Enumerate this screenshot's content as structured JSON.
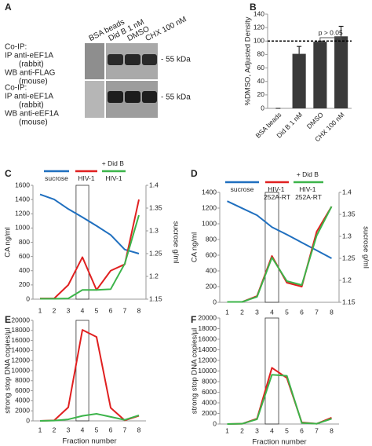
{
  "panel_a": {
    "label": "A",
    "lanes": [
      "BSA beads",
      "Did B 1 nM",
      "DMSO",
      "CHX 100 nM"
    ],
    "blots": [
      {
        "lines": [
          "Co-IP:",
          "IP anti-eEF1A",
          "(rabbit)",
          "WB anti-FLAG",
          "(mouse)"
        ],
        "marker": "- 55 kDa"
      },
      {
        "lines": [
          "Co-IP:",
          "IP  anti-eEF1A",
          "(rabbit)",
          "WB anti-eEF1A",
          "(mouse)"
        ],
        "marker": "- 55 kDa"
      }
    ]
  },
  "chart_data": [
    {
      "panel": "B",
      "type": "bar",
      "ylabel": "%DMSO, Adjusted Density",
      "categories": [
        "BSA beads",
        "Did B 1 nM",
        "DMSO",
        "CHX 100 nM"
      ],
      "values": [
        0,
        81,
        99,
        107
      ],
      "errors": [
        0,
        11,
        1,
        15
      ],
      "color": "#3a3a3a",
      "ylim": [
        0,
        140
      ],
      "yticks": [
        0,
        20,
        40,
        60,
        80,
        100,
        120,
        140
      ],
      "refline": 100,
      "annotation": "p > 0.05"
    },
    {
      "panel": "C",
      "type": "line",
      "ylabel": "CA ng/ml",
      "y2label": "sucrose g/ml",
      "categories": [
        "1",
        "2",
        "3",
        "4",
        "5",
        "6",
        "7",
        "8"
      ],
      "series": [
        {
          "name": "sucrose",
          "color": "#1f6fbf",
          "axis": "y2",
          "values": [
            1.38,
            1.369,
            1.348,
            1.33,
            1.311,
            1.291,
            1.259,
            1.25
          ]
        },
        {
          "name": "HIV-1",
          "color": "#e02020",
          "values": [
            10,
            10,
            200,
            590,
            130,
            400,
            490,
            1400
          ]
        },
        {
          "name": "+ Did B\nHIV-1",
          "color": "#3cb44a",
          "values": [
            5,
            5,
            10,
            130,
            130,
            140,
            500,
            1180
          ]
        }
      ],
      "ylim": [
        0,
        1600
      ],
      "yticks": [
        0,
        200,
        400,
        600,
        800,
        1000,
        1200,
        1400,
        1600
      ],
      "y2lim": [
        1.15,
        1.4
      ],
      "y2ticks": [
        1.15,
        1.2,
        1.25,
        1.3,
        1.35,
        1.4
      ],
      "highlight": "4"
    },
    {
      "panel": "D",
      "type": "line",
      "ylabel": "CA ng/ml",
      "y2label": "sucrose g/ml",
      "categories": [
        "1",
        "2",
        "3",
        "4",
        "5",
        "6",
        "7",
        "8"
      ],
      "series": [
        {
          "name": "sucrose",
          "color": "#1f6fbf",
          "axis": "y2",
          "values": [
            1.38,
            1.364,
            1.348,
            1.321,
            1.304,
            1.286,
            1.268,
            1.25
          ]
        },
        {
          "name": "HIV-1\n252A-RT",
          "color": "#e02020",
          "values": [
            5,
            5,
            80,
            590,
            250,
            200,
            900,
            1220
          ]
        },
        {
          "name": "+ Did B\nHIV-1\n252A-RT",
          "color": "#3cb44a",
          "values": [
            5,
            5,
            70,
            570,
            270,
            220,
            850,
            1220
          ]
        }
      ],
      "ylim": [
        0,
        1400
      ],
      "yticks": [
        0,
        200,
        400,
        600,
        800,
        1000,
        1200,
        1400
      ],
      "y2lim": [
        1.15,
        1.4
      ],
      "y2ticks": [
        1.15,
        1.2,
        1.25,
        1.3,
        1.35,
        1.4
      ],
      "highlight": "4"
    },
    {
      "panel": "E",
      "type": "line",
      "ylabel": "strong stop DNA copies/µl",
      "xlabel": "Fraction number",
      "categories": [
        "1",
        "2",
        "3",
        "4",
        "5",
        "6",
        "7",
        "8"
      ],
      "series": [
        {
          "color": "#e02020",
          "values": [
            0,
            100,
            2700,
            18100,
            16700,
            2600,
            100,
            1000
          ]
        },
        {
          "color": "#3cb44a",
          "values": [
            0,
            50,
            300,
            1000,
            1400,
            800,
            200,
            1100
          ]
        }
      ],
      "ylim": [
        0,
        20000
      ],
      "yticks": [
        0,
        2000,
        4000,
        6000,
        8000,
        10000,
        12000,
        14000,
        16000,
        18000,
        20000
      ],
      "highlight": "4"
    },
    {
      "panel": "F",
      "type": "line",
      "ylabel": "strong stop DNA copies/µl",
      "xlabel": "Fraction number",
      "categories": [
        "1",
        "2",
        "3",
        "4",
        "5",
        "6",
        "7",
        "8"
      ],
      "series": [
        {
          "color": "#e02020",
          "values": [
            0,
            50,
            1000,
            10600,
            8700,
            300,
            50,
            1200
          ]
        },
        {
          "color": "#3cb44a",
          "values": [
            0,
            50,
            900,
            9300,
            9100,
            200,
            50,
            1000
          ]
        }
      ],
      "ylim": [
        0,
        20000
      ],
      "yticks": [
        0,
        2000,
        4000,
        6000,
        8000,
        10000,
        12000,
        14000,
        16000,
        18000,
        20000
      ],
      "highlight": "4"
    }
  ]
}
